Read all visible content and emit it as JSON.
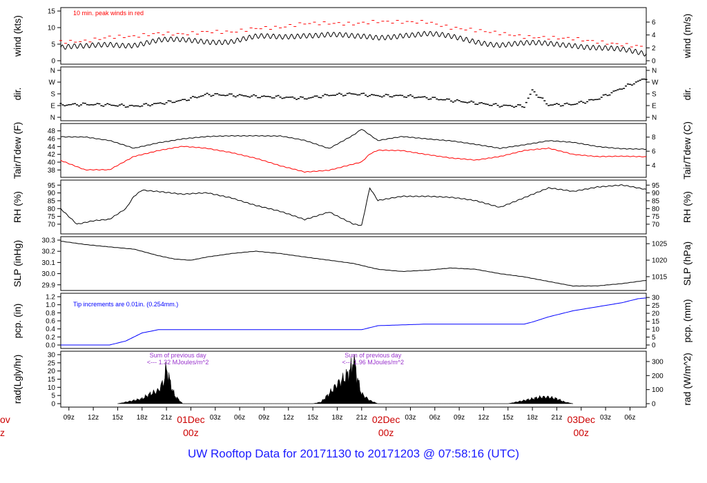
{
  "footer": {
    "prefix": "UW Rooftop Data for",
    "start": "20171130",
    "to": "to",
    "end": "20171203",
    "at": "@ 07:58:16",
    "tz": "(UTC)"
  },
  "colors": {
    "black": "#000000",
    "red": "#ff0000",
    "blue": "#0000ff",
    "purple": "#9933cc",
    "day_label": "#cc0000",
    "footer": "#1a1aff"
  },
  "x_axis": {
    "start": "2017-11-30 08:00 UTC",
    "end": "2017-12-03 07:58 UTC",
    "tick_labels": [
      "09z",
      "12z",
      "15z",
      "18z",
      "21z",
      "03z",
      "06z",
      "09z",
      "12z",
      "15z",
      "18z",
      "21z",
      "03z",
      "06z",
      "09z",
      "12z",
      "15z",
      "18z",
      "21z",
      "03z",
      "06z"
    ],
    "tick_hours": [
      1,
      4,
      7,
      10,
      13,
      19,
      22,
      25,
      28,
      31,
      34,
      37,
      43,
      46,
      49,
      52,
      55,
      58,
      61,
      67,
      70
    ],
    "day_labels": [
      {
        "hour": 16,
        "date": "01Dec",
        "time": "00z"
      },
      {
        "hour": 40,
        "date": "02Dec",
        "time": "00z"
      },
      {
        "hour": 64,
        "date": "03Dec",
        "time": "00z"
      }
    ],
    "cut_label_date": "ov",
    "cut_label_time": "z"
  },
  "chart_data": [
    {
      "type": "line",
      "id": "wind",
      "ylabel_left": "wind (kts)",
      "ylabel_right": "wind (m/s)",
      "ylim": [
        0,
        15
      ],
      "ticks_left": [
        "0",
        "5",
        "10",
        "15"
      ],
      "ticks_right": [
        "0",
        "2",
        "4",
        "6"
      ],
      "annotation": "10 min. peak winds in red",
      "series": [
        {
          "name": "wind speed",
          "color": "#000000",
          "x": [
            0,
            3,
            6,
            9,
            12,
            15,
            18,
            21,
            24,
            27,
            30,
            33,
            36,
            39,
            42,
            45,
            48,
            51,
            54,
            57,
            60,
            63,
            66,
            69,
            72
          ],
          "y": [
            4,
            4,
            5,
            5,
            6,
            6,
            6,
            6,
            7,
            7,
            8,
            8,
            7,
            7,
            8,
            8,
            7,
            6,
            5,
            5,
            5,
            5,
            4,
            3,
            2
          ]
        },
        {
          "name": "10 min. peak winds",
          "color": "#ff0000",
          "x": [
            0,
            3,
            6,
            9,
            12,
            15,
            18,
            21,
            24,
            27,
            30,
            33,
            36,
            39,
            42,
            45,
            48,
            51,
            54,
            57,
            60,
            63,
            66,
            69,
            72
          ],
          "y": [
            6,
            6,
            7,
            7,
            8,
            8,
            9,
            9,
            10,
            10,
            11,
            11,
            11,
            12,
            12,
            12,
            10,
            9,
            8,
            7,
            7,
            7,
            6,
            5,
            4
          ]
        }
      ]
    },
    {
      "type": "scatter",
      "id": "dir",
      "ylabel_left": "dir.",
      "ylabel_right": "dir.",
      "ylim": [
        0,
        360
      ],
      "ticks_left": [
        "N",
        "E",
        "S",
        "W",
        "N"
      ],
      "ticks_right": [
        "N",
        "E",
        "S",
        "W",
        "N"
      ],
      "series": [
        {
          "name": "wind direction",
          "color": "#000000",
          "x": [
            0,
            3,
            6,
            9,
            12,
            15,
            18,
            21,
            24,
            27,
            30,
            33,
            36,
            39,
            42,
            45,
            48,
            51,
            54,
            57,
            58,
            60,
            63,
            66,
            68,
            70,
            72
          ],
          "y": [
            95,
            100,
            95,
            85,
            105,
            130,
            175,
            170,
            160,
            155,
            145,
            170,
            180,
            165,
            165,
            150,
            130,
            110,
            90,
            85,
            205,
            95,
            100,
            140,
            195,
            250,
            300
          ]
        }
      ]
    },
    {
      "type": "line",
      "id": "temp",
      "ylabel_left": "Tair/Tdew (F)",
      "ylabel_right": "Tair/Tdew (C)",
      "ylim": [
        37,
        49
      ],
      "ticks_left": [
        "38",
        "40",
        "42",
        "44",
        "46",
        "48"
      ],
      "ticks_right": [
        "4",
        "6",
        "8"
      ],
      "series": [
        {
          "name": "Tair",
          "color": "#000000",
          "x": [
            0,
            3,
            6,
            9,
            12,
            15,
            18,
            21,
            24,
            27,
            30,
            33,
            36,
            37,
            38,
            39,
            42,
            45,
            48,
            51,
            54,
            57,
            60,
            63,
            66,
            69,
            72
          ],
          "y": [
            46.5,
            46.5,
            45.5,
            43.5,
            45,
            46,
            46.5,
            46.7,
            46.8,
            46.7,
            45.5,
            43.5,
            47,
            48.5,
            47,
            45.5,
            46.5,
            46,
            45.5,
            44.5,
            43.5,
            44.5,
            45.5,
            45,
            44,
            43.5,
            43.3
          ]
        },
        {
          "name": "Tdew",
          "color": "#ff0000",
          "x": [
            0,
            3,
            6,
            9,
            12,
            15,
            18,
            21,
            24,
            27,
            30,
            33,
            36,
            37,
            38,
            39,
            42,
            45,
            48,
            51,
            54,
            57,
            60,
            63,
            66,
            69,
            72
          ],
          "y": [
            40.5,
            38,
            38,
            41.5,
            43,
            44,
            43.5,
            42.5,
            41,
            39,
            37.5,
            38,
            39.5,
            40,
            42,
            43,
            43,
            42,
            41,
            40.5,
            41.5,
            43,
            43.5,
            42,
            41.5,
            41.5,
            41.3
          ]
        }
      ]
    },
    {
      "type": "line",
      "id": "rh",
      "ylabel_left": "RH (%)",
      "ylabel_right": "RH (%)",
      "ylim": [
        66,
        96
      ],
      "ticks_left": [
        "70",
        "75",
        "80",
        "85",
        "90",
        "95"
      ],
      "ticks_right": [
        "70",
        "75",
        "80",
        "85",
        "90",
        "95"
      ],
      "series": [
        {
          "name": "RH",
          "color": "#000000",
          "x": [
            0,
            2,
            4,
            6,
            8,
            9,
            10,
            12,
            15,
            18,
            21,
            24,
            27,
            30,
            33,
            36,
            37,
            38,
            39,
            42,
            45,
            48,
            51,
            54,
            57,
            60,
            63,
            66,
            69,
            72
          ],
          "y": [
            80,
            70,
            72,
            73,
            80,
            88,
            92,
            91,
            89,
            90,
            87,
            82,
            78,
            73,
            78,
            70,
            69,
            93,
            85,
            88,
            88,
            87,
            85,
            81,
            87,
            93,
            91,
            94,
            95,
            92
          ]
        }
      ]
    },
    {
      "type": "line",
      "id": "slp",
      "ylabel_left": "SLP (inHg)",
      "ylabel_right": "SLP (hPa)",
      "ylim": [
        29.88,
        30.3
      ],
      "ticks_left": [
        "29.9",
        "30.0",
        "30.1",
        "30.2",
        "30.3"
      ],
      "ticks_right": [
        "1015",
        "1020",
        "1025"
      ],
      "series": [
        {
          "name": "SLP",
          "color": "#000000",
          "x": [
            0,
            3,
            6,
            9,
            12,
            14,
            16,
            18,
            21,
            24,
            27,
            30,
            33,
            36,
            39,
            42,
            45,
            48,
            51,
            54,
            57,
            60,
            63,
            66,
            69,
            72
          ],
          "y": [
            30.29,
            30.26,
            30.24,
            30.22,
            30.16,
            30.13,
            30.12,
            30.15,
            30.18,
            30.2,
            30.18,
            30.15,
            30.12,
            30.09,
            30.04,
            30.02,
            30.03,
            30.05,
            30.04,
            30.0,
            29.97,
            29.93,
            29.89,
            29.89,
            29.91,
            29.94
          ]
        }
      ]
    },
    {
      "type": "line",
      "id": "pcp",
      "ylabel_left": "pcp. (in)",
      "ylabel_right": "pcp. (mm)",
      "ylim": [
        0,
        1.2
      ],
      "ticks_left": [
        "0.0",
        "0.2",
        "0.4",
        "0.6",
        "0.8",
        "1.0",
        "1.2"
      ],
      "ticks_right": [
        "0",
        "5",
        "10",
        "15",
        "20",
        "25",
        "30"
      ],
      "annotation": "Tip increments are 0.01in. (0.254mm.)",
      "series": [
        {
          "name": "cumulative precipitation",
          "color": "#0000ff",
          "x": [
            0,
            6,
            8,
            10,
            12,
            15,
            20,
            25,
            30,
            33,
            37,
            38,
            39,
            42,
            45,
            48,
            51,
            57,
            58,
            60,
            63,
            66,
            69,
            71,
            72
          ],
          "y": [
            0,
            0,
            0.1,
            0.3,
            0.38,
            0.38,
            0.38,
            0.38,
            0.38,
            0.38,
            0.38,
            0.43,
            0.48,
            0.5,
            0.52,
            0.52,
            0.52,
            0.52,
            0.57,
            0.7,
            0.85,
            0.95,
            1.05,
            1.15,
            1.17
          ]
        }
      ]
    },
    {
      "type": "area",
      "id": "rad",
      "ylabel_left": "rad(Lgly/hr)",
      "ylabel_right": "rad (W/m^2)",
      "ylim": [
        0,
        30
      ],
      "ticks_left": [
        "0",
        "5",
        "10",
        "15",
        "20",
        "25",
        "30"
      ],
      "ticks_right": [
        "0",
        "100",
        "200",
        "300"
      ],
      "annotations": [
        {
          "hour": 14.4,
          "line1": "Sum of previous day",
          "line2": "<--- 1.32 MJoules/m^2"
        },
        {
          "hour": 38.4,
          "line1": "Sum of previous day",
          "line2": "<--- 1.96 MJoules/m^2"
        }
      ],
      "series": [
        {
          "name": "solar radiation",
          "color": "#000000",
          "x": [
            7,
            8,
            10,
            11,
            12,
            12.7,
            13,
            13.5,
            14,
            15,
            31,
            32,
            33,
            34,
            35,
            35.8,
            36,
            36.5,
            37,
            38,
            39,
            55,
            56,
            57,
            58,
            59,
            60,
            61,
            62,
            63
          ],
          "y": [
            0,
            1,
            3,
            6,
            8,
            14,
            22,
            12,
            5,
            0,
            0,
            1,
            6,
            12,
            16,
            22,
            30,
            15,
            6,
            2,
            0,
            0,
            1,
            2,
            3,
            4,
            4,
            3,
            1,
            0
          ]
        }
      ]
    }
  ]
}
